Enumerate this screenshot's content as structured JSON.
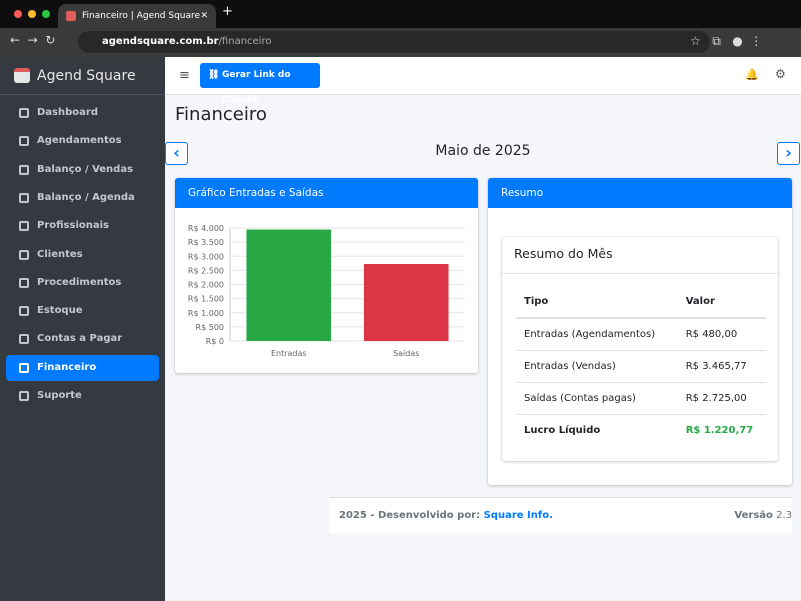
{
  "browser": {
    "tab_title": "Financeiro | Agend Square",
    "url": {
      "domain": "agendsquare.com.br",
      "path": "/financeiro"
    }
  },
  "sidebar": {
    "brand": "Agend Square",
    "menu": [
      "Dashboard",
      "Agendamentos",
      "Balanço / Vendas",
      "Balanço / Agenda",
      "Profissionais",
      "Clientes",
      "Procedimentos",
      "Estoque",
      "Contas a Pagar",
      "Financeiro",
      "Suporte"
    ],
    "active": "Financeiro"
  },
  "navbar": {
    "button": "Gerar Link do Cliente"
  },
  "page": {
    "title": "Financeiro",
    "month": "Maio de 2025"
  },
  "chart_data": {
    "type": "bar",
    "title": "Gráfico Entradas e Saídas",
    "categories": [
      "Entradas",
      "Saídas"
    ],
    "values": [
      3945.77,
      2725.0
    ],
    "colors": [
      "#28a745",
      "#dc3545"
    ],
    "ylim": [
      0,
      4000
    ],
    "yticks": [
      {
        "value": 0,
        "label": "R$ 0"
      },
      {
        "value": 500,
        "label": "R$ 500"
      },
      {
        "value": 1000,
        "label": "R$ 1.000"
      },
      {
        "value": 1500,
        "label": "R$ 1.500"
      },
      {
        "value": 2000,
        "label": "R$ 2.000"
      },
      {
        "value": 2500,
        "label": "R$ 2.500"
      },
      {
        "value": 3000,
        "label": "R$ 3.000"
      },
      {
        "value": 3500,
        "label": "R$ 3.500"
      },
      {
        "value": 4000,
        "label": "R$ 4.000"
      }
    ],
    "grid": true
  },
  "summary": {
    "header": "Resumo",
    "card_title": "Resumo do Mês",
    "table": {
      "headers": [
        "Tipo",
        "Valor"
      ],
      "rows": [
        [
          "Entradas (Agendamentos)",
          "R$ 480,00"
        ],
        [
          "Entradas (Vendas)",
          "R$ 3.465,77"
        ],
        [
          "Saídas (Contas pagas)",
          "R$ 2.725,00"
        ],
        [
          "Lucro Líquido",
          "R$ 1.220,77"
        ]
      ]
    }
  },
  "footer": {
    "text": "2025 - Desenvolvido por:",
    "link": "Square Info.",
    "version_label": "Versão",
    "version": "2.3"
  }
}
